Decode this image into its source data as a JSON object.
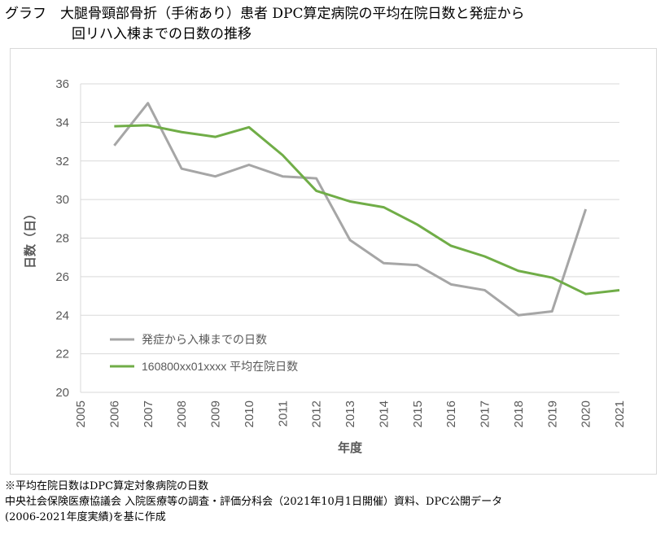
{
  "title_line1": "グラフ　大腿骨頸部骨折（手術あり）患者 DPC算定病院の平均在院日数と発症から",
  "title_line2": "回リハ入棟までの日数の推移",
  "notes": [
    "※平均在院日数はDPC算定対象病院の日数",
    "中央社会保険医療協議会 入院医療等の調査・評価分科会（2021年10月1日開催）資料、DPC公開データ",
    "(2006-2021年度実績)を基に作成"
  ],
  "chart_data": {
    "type": "line",
    "title": "大腿骨頸部骨折（手術あり）患者 DPC算定病院の平均在院日数と発症から回リハ入棟までの日数の推移",
    "xlabel": "年度",
    "ylabel": "日数（日）",
    "ylim": [
      20,
      36
    ],
    "yticks": [
      "20",
      "22",
      "24",
      "26",
      "28",
      "30",
      "32",
      "34",
      "36"
    ],
    "xlim": [
      2005,
      2021
    ],
    "xticks": [
      "2005",
      "2006",
      "2007",
      "2008",
      "2009",
      "2010",
      "2011",
      "2012",
      "2013",
      "2014",
      "2015",
      "2016",
      "2017",
      "2018",
      "2019",
      "2020",
      "2021"
    ],
    "grid": true,
    "legend_position": "bottom-left",
    "series": [
      {
        "name": "発症から入棟までの日数",
        "color": "#a6a6a6",
        "x": [
          2006,
          2007,
          2008,
          2009,
          2010,
          2011,
          2012,
          2013,
          2014,
          2015,
          2016,
          2017,
          2018,
          2019,
          2020
        ],
        "values": [
          32.8,
          35.0,
          31.6,
          31.2,
          31.8,
          31.2,
          31.1,
          27.9,
          26.7,
          26.6,
          25.6,
          25.3,
          24.0,
          24.2,
          29.5
        ]
      },
      {
        "name": "160800xx01xxxx 平均在院日数",
        "color": "#70ad47",
        "x": [
          2006,
          2007,
          2008,
          2009,
          2010,
          2011,
          2012,
          2013,
          2014,
          2015,
          2016,
          2017,
          2018,
          2019,
          2020,
          2021
        ],
        "values": [
          33.8,
          33.85,
          33.5,
          33.25,
          33.75,
          32.3,
          30.45,
          29.9,
          29.6,
          28.7,
          27.6,
          27.05,
          26.3,
          25.95,
          25.1,
          25.3
        ]
      }
    ]
  }
}
